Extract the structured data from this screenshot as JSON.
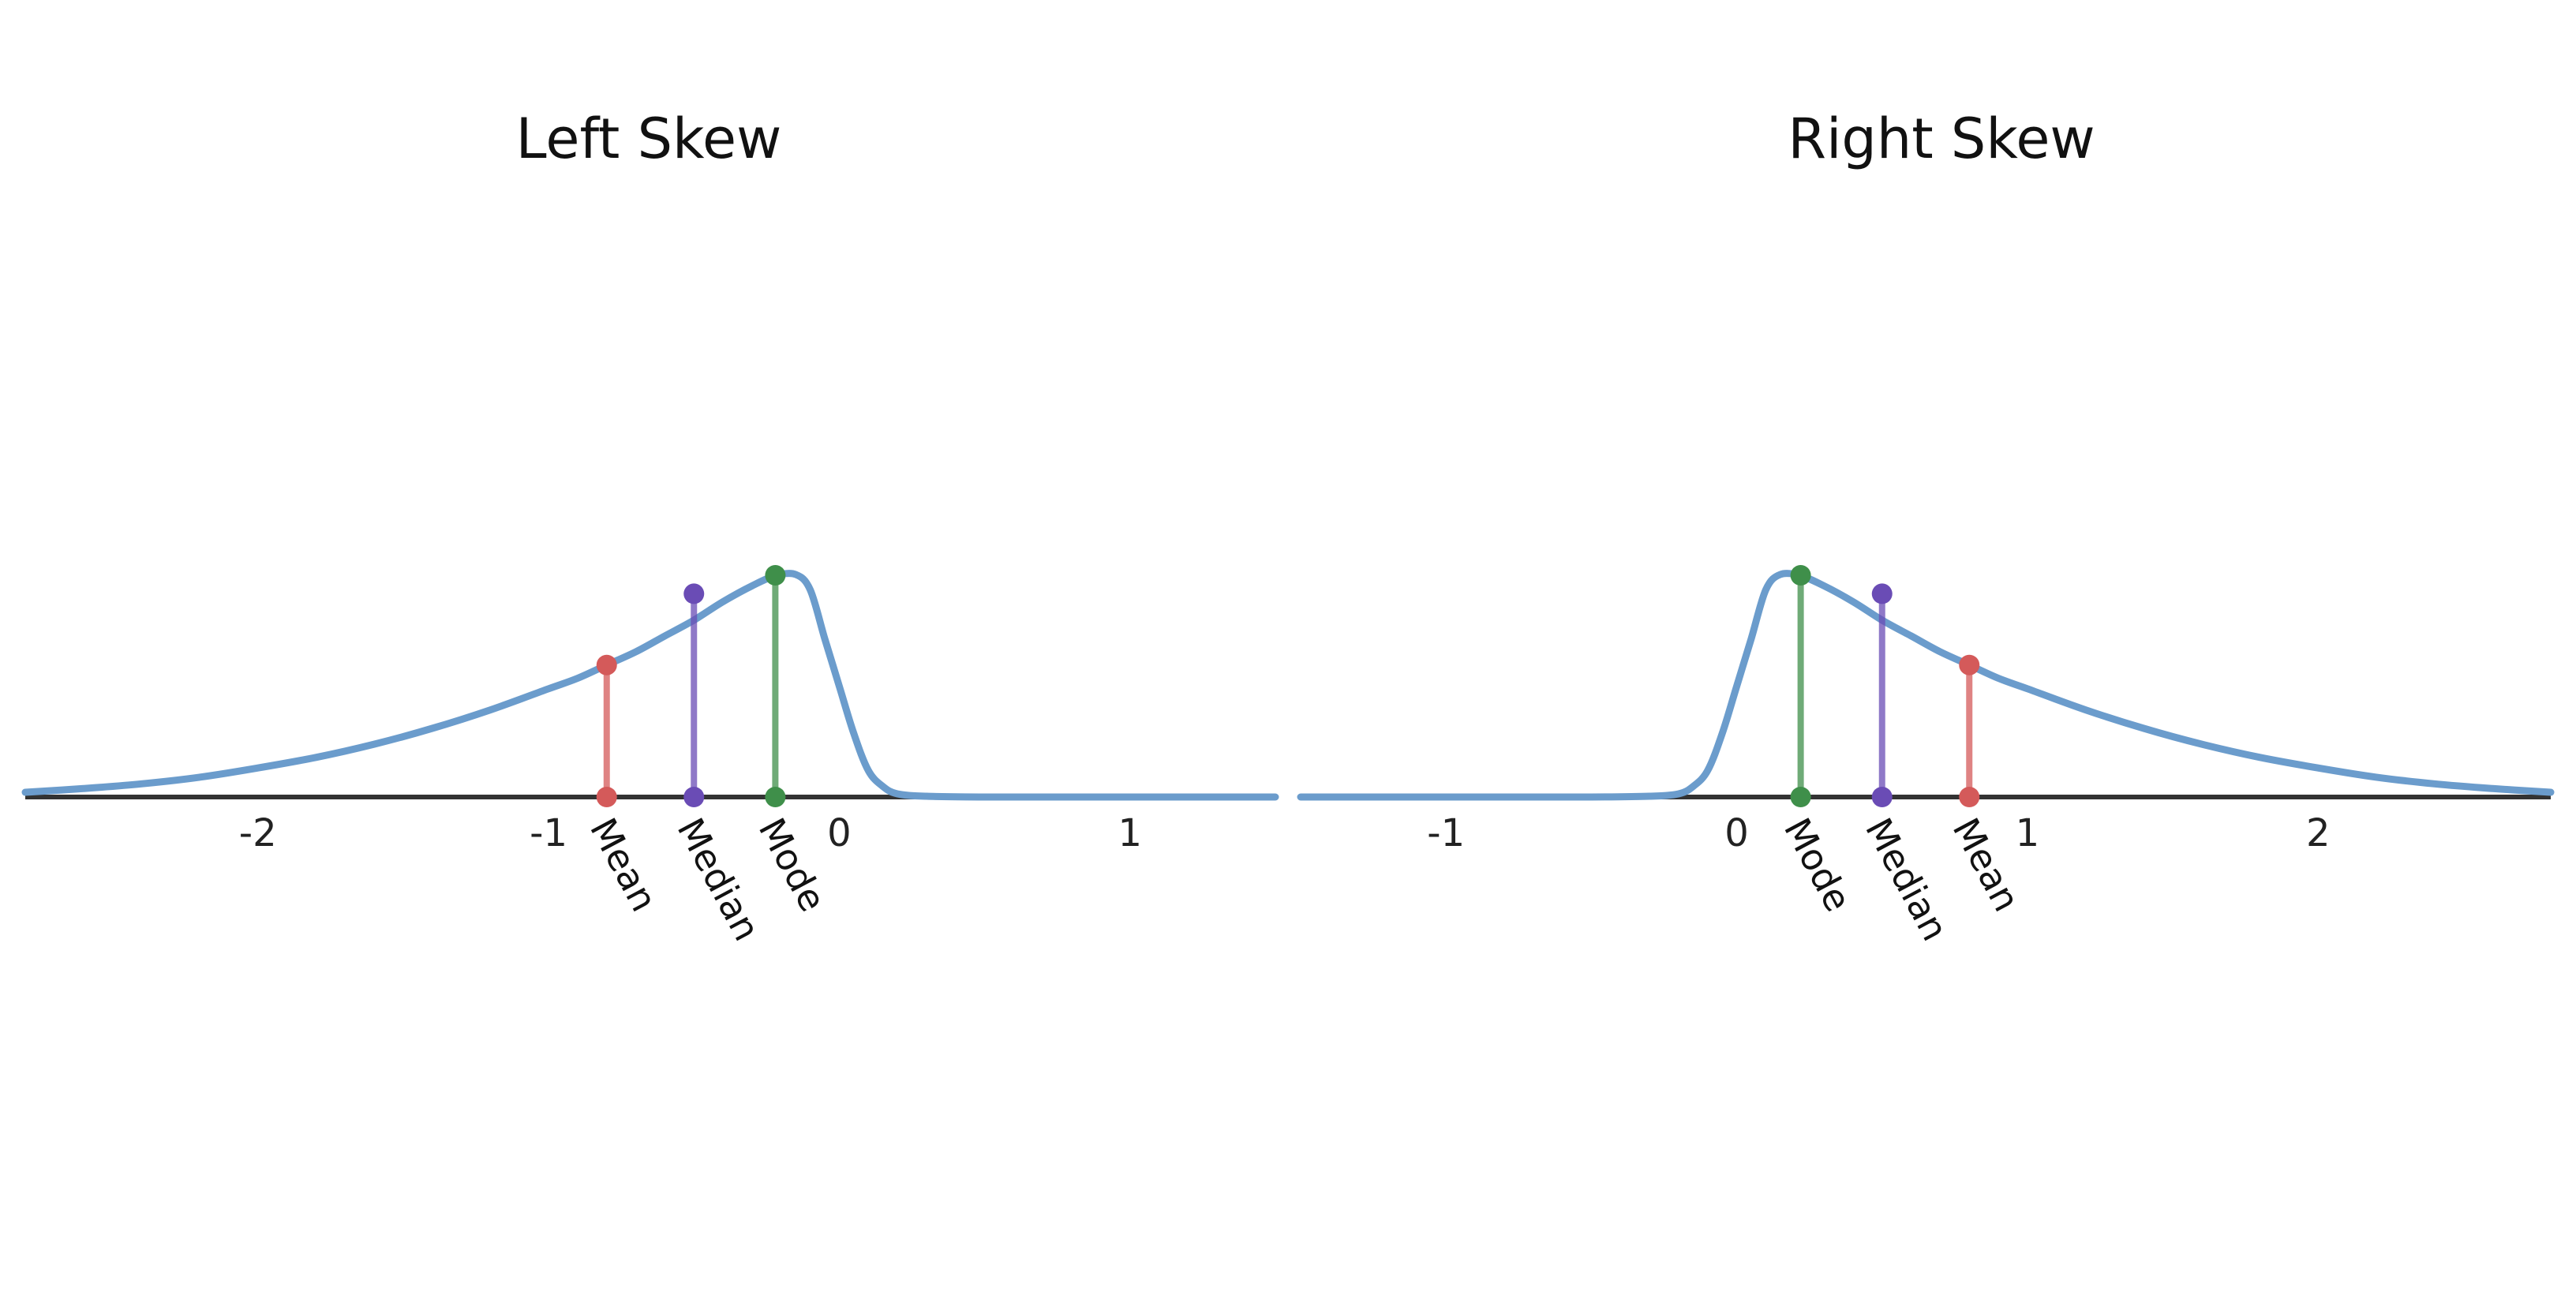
{
  "chart_data": [
    {
      "type": "line",
      "title": "Left Skew",
      "xlim": [
        -2.8,
        1.5
      ],
      "ylim": [
        0,
        1
      ],
      "xticks": [
        -2,
        -1,
        0,
        1
      ],
      "xtick_labels": [
        "-2",
        "-1",
        "0",
        "1"
      ],
      "xlabel": "",
      "ylabel": "",
      "grid": false,
      "density_curve": {
        "x": [
          -2.8,
          -2.6,
          -2.4,
          -2.2,
          -2.0,
          -1.8,
          -1.6,
          -1.4,
          -1.2,
          -1.0,
          -0.9,
          -0.8,
          -0.7,
          -0.6,
          -0.5,
          -0.4,
          -0.3,
          -0.22,
          -0.15,
          -0.1,
          -0.05,
          0.0,
          0.05,
          0.1,
          0.15,
          0.2,
          0.3,
          0.5,
          1.0,
          1.5
        ],
        "y": [
          0.018,
          0.032,
          0.05,
          0.075,
          0.11,
          0.15,
          0.2,
          0.26,
          0.33,
          0.41,
          0.45,
          0.5,
          0.55,
          0.61,
          0.67,
          0.74,
          0.8,
          0.838,
          0.843,
          0.785,
          0.6,
          0.42,
          0.24,
          0.1,
          0.04,
          0.012,
          0.003,
          0.0,
          0.0,
          0.0
        ]
      },
      "markers": [
        {
          "label": "Mean",
          "x": -0.8,
          "y": 0.5,
          "color": "#d45a5a"
        },
        {
          "label": "Median",
          "x": -0.5,
          "y": 0.77,
          "color": "#6a4cb5"
        },
        {
          "label": "Mode",
          "x": -0.22,
          "y": 0.84,
          "color": "#3f8f4a"
        }
      ],
      "curve_color": "#6b9ccc",
      "axis_color": "#333333"
    },
    {
      "type": "line",
      "title": "Right Skew",
      "xlim": [
        -1.5,
        2.8
      ],
      "ylim": [
        0,
        1
      ],
      "xticks": [
        -1,
        0,
        1,
        2
      ],
      "xtick_labels": [
        "-1",
        "0",
        "1",
        "2"
      ],
      "xlabel": "",
      "ylabel": "",
      "grid": false,
      "density_curve": {
        "x": [
          -1.5,
          -1.0,
          -0.5,
          -0.3,
          -0.2,
          -0.15,
          -0.1,
          -0.05,
          0.0,
          0.05,
          0.1,
          0.15,
          0.22,
          0.3,
          0.4,
          0.5,
          0.6,
          0.7,
          0.8,
          0.9,
          1.0,
          1.2,
          1.4,
          1.6,
          1.8,
          2.0,
          2.2,
          2.4,
          2.6,
          2.8
        ],
        "y": [
          0.0,
          0.0,
          0.0,
          0.003,
          0.012,
          0.04,
          0.1,
          0.24,
          0.42,
          0.6,
          0.785,
          0.843,
          0.838,
          0.8,
          0.74,
          0.67,
          0.61,
          0.55,
          0.5,
          0.45,
          0.41,
          0.33,
          0.26,
          0.2,
          0.15,
          0.11,
          0.075,
          0.05,
          0.032,
          0.018
        ]
      },
      "markers": [
        {
          "label": "Mode",
          "x": 0.22,
          "y": 0.84,
          "color": "#3f8f4a"
        },
        {
          "label": "Median",
          "x": 0.5,
          "y": 0.77,
          "color": "#6a4cb5"
        },
        {
          "label": "Mean",
          "x": 0.8,
          "y": 0.5,
          "color": "#d45a5a"
        }
      ],
      "curve_color": "#6b9ccc",
      "axis_color": "#333333"
    }
  ]
}
